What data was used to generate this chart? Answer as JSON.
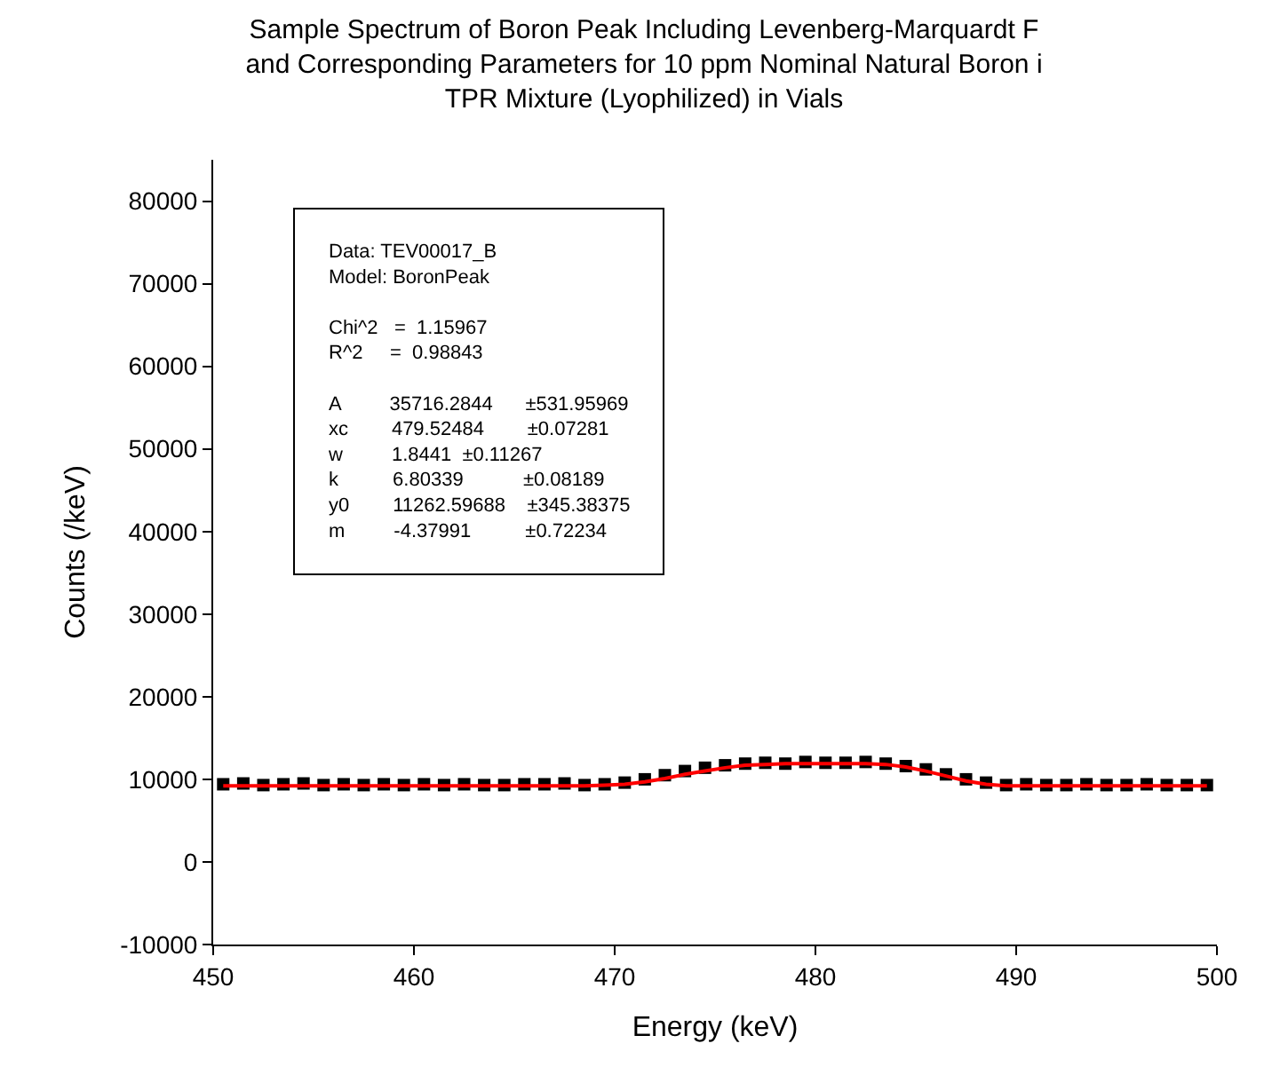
{
  "chart_data": {
    "type": "scatter",
    "title": "Sample Spectrum of Boron Peak Including Levenberg-Marquardt F\nand Corresponding Parameters for 10 ppm Nominal Natural Boron i\nTPR Mixture (Lyophilized) in Vials",
    "xlabel": "Energy (keV)",
    "ylabel": "Counts (/keV)",
    "x": [
      450.5,
      451.5,
      452.5,
      453.5,
      454.5,
      455.5,
      456.5,
      457.5,
      458.5,
      459.5,
      460.5,
      461.5,
      462.5,
      463.5,
      464.5,
      465.5,
      466.5,
      467.5,
      468.5,
      469.5,
      470.5,
      471.5,
      472.5,
      473.5,
      474.5,
      475.5,
      476.5,
      477.5,
      478.5,
      479.5,
      480.5,
      481.5,
      482.5,
      483.5,
      484.5,
      485.5,
      486.5,
      487.5,
      488.5,
      489.5,
      490.5,
      491.5,
      492.5,
      493.5,
      494.5,
      495.5,
      496.5,
      497.5,
      498.5,
      499.5
    ],
    "series": [
      {
        "marker": "square",
        "color": "#000000",
        "values": [
          9400,
          9500,
          9300,
          9400,
          9500,
          9300,
          9400,
          9300,
          9400,
          9300,
          9400,
          9300,
          9400,
          9300,
          9300,
          9400,
          9400,
          9500,
          9300,
          9400,
          9600,
          10000,
          10500,
          11000,
          11400,
          11700,
          11900,
          12000,
          11900,
          12100,
          12000,
          12000,
          12100,
          11900,
          11600,
          11200,
          10600,
          10000,
          9600,
          9300,
          9400,
          9300,
          9300,
          9400,
          9300,
          9300,
          9400,
          9300,
          9300,
          9300
        ]
      },
      {
        "type": "line",
        "marker": "none",
        "color": "#ff0000",
        "values": [
          9200,
          9200,
          9200,
          9200,
          9200,
          9200,
          9200,
          9200,
          9200,
          9200,
          9200,
          9200,
          9200,
          9200,
          9200,
          9200,
          9200,
          9200,
          9200,
          9300,
          9400,
          9700,
          10100,
          10600,
          11000,
          11400,
          11700,
          11800,
          11900,
          11900,
          11900,
          11900,
          11900,
          11800,
          11500,
          11000,
          10400,
          9800,
          9400,
          9200,
          9200,
          9200,
          9200,
          9200,
          9200,
          9200,
          9200,
          9200,
          9200,
          9200
        ]
      }
    ],
    "xlim": [
      450,
      500
    ],
    "xticks": [
      450,
      460,
      470,
      480,
      490,
      500
    ],
    "ylim": [
      -10000,
      85000
    ],
    "yticks": [
      -10000,
      0,
      10000,
      20000,
      30000,
      40000,
      50000,
      60000,
      70000,
      80000
    ],
    "annotations": [
      "Data: TEV00017_B\nModel: BoronPeak\n\nChi^2   =  1.15967\nR^2     =  0.98843\n\nA         35716.2844      ±531.95969\nxc        479.52484        ±0.07281\nw         1.8441  ±0.11267\nk          6.80339           ±0.08189\ny0        11262.59688    ±345.38375\nm         -4.37991          ±0.72234"
    ]
  }
}
